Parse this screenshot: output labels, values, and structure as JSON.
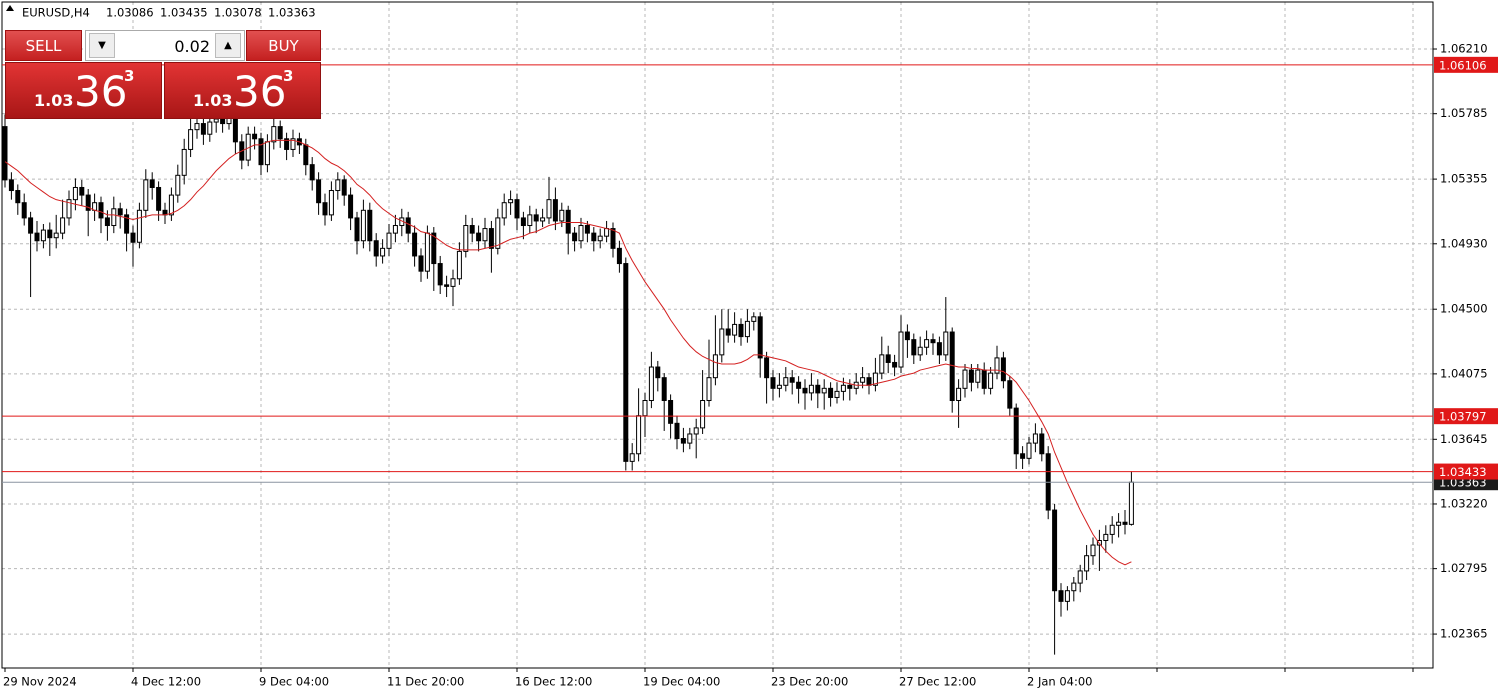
{
  "chart_data": {
    "type": "candlestick",
    "symbol": "EURUSD,H4",
    "ylim": [
      1.02142,
      1.06519
    ],
    "yticks": [
      {
        "value": 1.0621,
        "label": "1.06210"
      },
      1.05785,
      1.05355,
      {
        "value": 1.0493,
        "label": "1.04930"
      },
      {
        "value": 1.045,
        "label": "1.04500"
      },
      1.04075,
      1.03645,
      {
        "value": 1.0322,
        "label": "1.03220"
      },
      1.02795,
      1.02365
    ],
    "grid": true,
    "up_color": "#ffffff",
    "down_color": "#000000",
    "ma_color": "#d42020",
    "categories": [
      "29 Nov 2024",
      null,
      null,
      null,
      null,
      null,
      null,
      null,
      null,
      null,
      null,
      null,
      null,
      null,
      null,
      null,
      null,
      null,
      null,
      null,
      "4 Dec 12:00",
      null,
      null,
      null,
      null,
      null,
      null,
      null,
      null,
      null,
      null,
      null,
      null,
      null,
      null,
      null,
      null,
      null,
      null,
      null,
      "9 Dec 04:00",
      null,
      null,
      null,
      null,
      null,
      null,
      null,
      null,
      null,
      null,
      null,
      null,
      null,
      null,
      null,
      null,
      null,
      null,
      null,
      "11 Dec 20:00",
      null,
      null,
      null,
      null,
      null,
      null,
      null,
      null,
      null,
      null,
      null,
      null,
      null,
      null,
      null,
      null,
      null,
      null,
      null,
      "16 Dec 12:00",
      null,
      null,
      null,
      null,
      null,
      null,
      null,
      null,
      null,
      null,
      null,
      null,
      null,
      null,
      null,
      null,
      null,
      null,
      null,
      "19 Dec 04:00",
      null,
      null,
      null,
      null,
      null,
      null,
      null,
      null,
      null,
      null,
      null,
      null,
      null,
      null,
      null,
      null,
      null,
      null,
      null,
      "23 Dec 20:00",
      null,
      null,
      null,
      null,
      null,
      null,
      null,
      null,
      null,
      null,
      null,
      null,
      null,
      null,
      null,
      null,
      null,
      null,
      null,
      "27 Dec 12:00",
      null,
      null,
      null,
      null,
      null,
      null,
      null,
      null,
      null,
      null,
      null,
      null,
      null,
      null,
      null,
      null,
      null,
      null,
      null,
      "2 Jan 04:00",
      null,
      null,
      null,
      null,
      null,
      null,
      null,
      null,
      null,
      null,
      null,
      null,
      null,
      null,
      null,
      null
    ],
    "ohlc": [
      [
        1.057,
        1.0578,
        1.053,
        1.0535
      ],
      [
        1.0535,
        1.054,
        1.0522,
        1.0528
      ],
      [
        1.0528,
        1.0532,
        1.0512,
        1.052
      ],
      [
        1.052,
        1.0526,
        1.0505,
        1.051
      ],
      [
        1.051,
        1.0514,
        1.0458,
        1.05
      ],
      [
        1.05,
        1.0508,
        1.0488,
        1.0495
      ],
      [
        1.0495,
        1.0506,
        1.049,
        1.0502
      ],
      [
        1.0502,
        1.0507,
        1.0485,
        1.0497
      ],
      [
        1.0497,
        1.0512,
        1.049,
        1.05
      ],
      [
        1.05,
        1.0522,
        1.0496,
        1.051
      ],
      [
        1.051,
        1.0528,
        1.0505,
        1.0522
      ],
      [
        1.0522,
        1.0536,
        1.0515,
        1.053
      ],
      [
        1.053,
        1.0535,
        1.0518,
        1.0525
      ],
      [
        1.0525,
        1.0529,
        1.0498,
        1.0515
      ],
      [
        1.0515,
        1.0526,
        1.0508,
        1.052
      ],
      [
        1.052,
        1.0524,
        1.05,
        1.051
      ],
      [
        1.051,
        1.0515,
        1.0495,
        1.0505
      ],
      [
        1.0505,
        1.0524,
        1.05,
        1.0516
      ],
      [
        1.0516,
        1.052,
        1.0503,
        1.0512
      ],
      [
        1.0512,
        1.0516,
        1.0488,
        1.05
      ],
      [
        1.05,
        1.0505,
        1.0478,
        1.0494
      ],
      [
        1.0494,
        1.052,
        1.049,
        1.0515
      ],
      [
        1.0515,
        1.0542,
        1.051,
        1.0535
      ],
      [
        1.0535,
        1.054,
        1.0522,
        1.053
      ],
      [
        1.053,
        1.0534,
        1.0508,
        1.0515
      ],
      [
        1.0515,
        1.052,
        1.0506,
        1.0512
      ],
      [
        1.0512,
        1.053,
        1.0508,
        1.0525
      ],
      [
        1.0525,
        1.0545,
        1.052,
        1.0538
      ],
      [
        1.0538,
        1.0562,
        1.0532,
        1.0555
      ],
      [
        1.0555,
        1.0575,
        1.055,
        1.0568
      ],
      [
        1.0568,
        1.058,
        1.0562,
        1.0572
      ],
      [
        1.0572,
        1.0578,
        1.0558,
        1.0565
      ],
      [
        1.0565,
        1.058,
        1.056,
        1.0573
      ],
      [
        1.0573,
        1.0582,
        1.0566,
        1.0575
      ],
      [
        1.0575,
        1.0579,
        1.0566,
        1.0572
      ],
      [
        1.0572,
        1.0584,
        1.0568,
        1.0576
      ],
      [
        1.0576,
        1.058,
        1.0552,
        1.056
      ],
      [
        1.056,
        1.0565,
        1.0542,
        1.0548
      ],
      [
        1.0548,
        1.057,
        1.0544,
        1.0565
      ],
      [
        1.0565,
        1.057,
        1.0555,
        1.0562
      ],
      [
        1.0562,
        1.0566,
        1.0538,
        1.0545
      ],
      [
        1.0545,
        1.0565,
        1.054,
        1.056
      ],
      [
        1.056,
        1.0578,
        1.0555,
        1.057
      ],
      [
        1.057,
        1.0574,
        1.0556,
        1.0562
      ],
      [
        1.0562,
        1.0566,
        1.0548,
        1.0555
      ],
      [
        1.0555,
        1.0568,
        1.055,
        1.0562
      ],
      [
        1.0562,
        1.0566,
        1.0552,
        1.0558
      ],
      [
        1.0558,
        1.0562,
        1.0538,
        1.0545
      ],
      [
        1.0545,
        1.055,
        1.0528,
        1.0535
      ],
      [
        1.0535,
        1.054,
        1.0512,
        1.052
      ],
      [
        1.052,
        1.0526,
        1.0505,
        1.0512
      ],
      [
        1.0512,
        1.0534,
        1.0508,
        1.0528
      ],
      [
        1.0528,
        1.054,
        1.0522,
        1.0535
      ],
      [
        1.0535,
        1.0538,
        1.0518,
        1.0525
      ],
      [
        1.0525,
        1.053,
        1.0502,
        1.051
      ],
      [
        1.051,
        1.0514,
        1.0486,
        1.0495
      ],
      [
        1.0495,
        1.0522,
        1.049,
        1.0515
      ],
      [
        1.0515,
        1.052,
        1.0488,
        1.0495
      ],
      [
        1.0495,
        1.05,
        1.0478,
        1.0485
      ],
      [
        1.0485,
        1.0496,
        1.048,
        1.049
      ],
      [
        1.049,
        1.0506,
        1.0485,
        1.05
      ],
      [
        1.05,
        1.0512,
        1.0494,
        1.0505
      ],
      [
        1.0505,
        1.0516,
        1.0498,
        1.051
      ],
      [
        1.051,
        1.0514,
        1.0494,
        1.05
      ],
      [
        1.05,
        1.0505,
        1.0478,
        1.0485
      ],
      [
        1.0485,
        1.049,
        1.0468,
        1.0475
      ],
      [
        1.0475,
        1.0505,
        1.047,
        1.05
      ],
      [
        1.05,
        1.0504,
        1.0462,
        1.048
      ],
      [
        1.048,
        1.0485,
        1.046,
        1.0466
      ],
      [
        1.0466,
        1.0472,
        1.0458,
        1.0465
      ],
      [
        1.0465,
        1.0476,
        1.0452,
        1.047
      ],
      [
        1.047,
        1.0494,
        1.0466,
        1.0488
      ],
      [
        1.0488,
        1.0512,
        1.0484,
        1.0505
      ],
      [
        1.0505,
        1.051,
        1.0494,
        1.05
      ],
      [
        1.05,
        1.0505,
        1.0488,
        1.0495
      ],
      [
        1.0495,
        1.051,
        1.049,
        1.0503
      ],
      [
        1.0503,
        1.0508,
        1.0474,
        1.049
      ],
      [
        1.049,
        1.0516,
        1.0486,
        1.051
      ],
      [
        1.051,
        1.0526,
        1.0505,
        1.052
      ],
      [
        1.052,
        1.0528,
        1.0512,
        1.0522
      ],
      [
        1.0522,
        1.0526,
        1.0502,
        1.051
      ],
      [
        1.051,
        1.0514,
        1.0496,
        1.0505
      ],
      [
        1.0505,
        1.0518,
        1.05,
        1.0512
      ],
      [
        1.0512,
        1.0516,
        1.05,
        1.0508
      ],
      [
        1.0508,
        1.0516,
        1.0504,
        1.051
      ],
      [
        1.051,
        1.0537,
        1.0506,
        1.0522
      ],
      [
        1.0522,
        1.053,
        1.0502,
        1.0508
      ],
      [
        1.0508,
        1.052,
        1.0504,
        1.0515
      ],
      [
        1.0515,
        1.0518,
        1.0486,
        1.05
      ],
      [
        1.05,
        1.0504,
        1.0488,
        1.0495
      ],
      [
        1.0495,
        1.051,
        1.049,
        1.0505
      ],
      [
        1.0505,
        1.0508,
        1.0494,
        1.05
      ],
      [
        1.05,
        1.0504,
        1.0488,
        1.0495
      ],
      [
        1.0495,
        1.0503,
        1.049,
        1.0498
      ],
      [
        1.0498,
        1.0508,
        1.0494,
        1.0503
      ],
      [
        1.0503,
        1.0507,
        1.0484,
        1.049
      ],
      [
        1.049,
        1.0495,
        1.0474,
        1.048
      ],
      [
        1.048,
        1.0484,
        1.0344,
        1.035
      ],
      [
        1.035,
        1.0362,
        1.0344,
        1.0355
      ],
      [
        1.0355,
        1.0398,
        1.035,
        1.038
      ],
      [
        1.038,
        1.0395,
        1.0366,
        1.039
      ],
      [
        1.039,
        1.0422,
        1.0385,
        1.0412
      ],
      [
        1.0412,
        1.0416,
        1.0396,
        1.0405
      ],
      [
        1.0405,
        1.0408,
        1.037,
        1.039
      ],
      [
        1.039,
        1.0394,
        1.0365,
        1.0375
      ],
      [
        1.0375,
        1.038,
        1.0358,
        1.0365
      ],
      [
        1.0365,
        1.0372,
        1.0356,
        1.0362
      ],
      [
        1.0362,
        1.0372,
        1.0358,
        1.0368
      ],
      [
        1.0368,
        1.0378,
        1.0352,
        1.0372
      ],
      [
        1.0372,
        1.041,
        1.0368,
        1.039
      ],
      [
        1.039,
        1.043,
        1.0386,
        1.0405
      ],
      [
        1.0405,
        1.0446,
        1.04,
        1.042
      ],
      [
        1.042,
        1.045,
        1.0415,
        1.0437
      ],
      [
        1.0437,
        1.045,
        1.0428,
        1.0433
      ],
      [
        1.0433,
        1.0448,
        1.0428,
        1.044
      ],
      [
        1.044,
        1.0444,
        1.0426,
        1.0432
      ],
      [
        1.0432,
        1.045,
        1.0428,
        1.0442
      ],
      [
        1.0442,
        1.0448,
        1.0436,
        1.0445
      ],
      [
        1.0445,
        1.0448,
        1.0405,
        1.0418
      ],
      [
        1.0418,
        1.0422,
        1.0388,
        1.0405
      ],
      [
        1.0405,
        1.041,
        1.039,
        1.0398
      ],
      [
        1.0398,
        1.0408,
        1.0392,
        1.04
      ],
      [
        1.04,
        1.0412,
        1.0396,
        1.0405
      ],
      [
        1.0405,
        1.041,
        1.0394,
        1.0402
      ],
      [
        1.0402,
        1.0406,
        1.0388,
        1.0398
      ],
      [
        1.0398,
        1.0404,
        1.0384,
        1.0395
      ],
      [
        1.0395,
        1.0408,
        1.039,
        1.04
      ],
      [
        1.04,
        1.0404,
        1.0385,
        1.0395
      ],
      [
        1.0395,
        1.0404,
        1.0384,
        1.0398
      ],
      [
        1.0398,
        1.0402,
        1.0386,
        1.0392
      ],
      [
        1.0392,
        1.0402,
        1.0388,
        1.0396
      ],
      [
        1.0396,
        1.0405,
        1.039,
        1.04
      ],
      [
        1.04,
        1.0404,
        1.039,
        1.0398
      ],
      [
        1.0398,
        1.0408,
        1.0394,
        1.0402
      ],
      [
        1.0402,
        1.0412,
        1.0398,
        1.0405
      ],
      [
        1.0405,
        1.0408,
        1.0394,
        1.04
      ],
      [
        1.04,
        1.0418,
        1.0396,
        1.0408
      ],
      [
        1.0408,
        1.0432,
        1.0404,
        1.042
      ],
      [
        1.042,
        1.0426,
        1.0408,
        1.0415
      ],
      [
        1.0415,
        1.042,
        1.0406,
        1.0412
      ],
      [
        1.0412,
        1.0446,
        1.0408,
        1.0435
      ],
      [
        1.0435,
        1.044,
        1.0418,
        1.043
      ],
      [
        1.043,
        1.0434,
        1.0414,
        1.042
      ],
      [
        1.042,
        1.0432,
        1.0416,
        1.0425
      ],
      [
        1.0425,
        1.0436,
        1.042,
        1.043
      ],
      [
        1.043,
        1.0434,
        1.042,
        1.0428
      ],
      [
        1.0428,
        1.0432,
        1.0414,
        1.042
      ],
      [
        1.042,
        1.0458,
        1.0416,
        1.0435
      ],
      [
        1.0435,
        1.0438,
        1.0382,
        1.039
      ],
      [
        1.039,
        1.0404,
        1.0372,
        1.0398
      ],
      [
        1.0398,
        1.0414,
        1.0392,
        1.041
      ],
      [
        1.041,
        1.0414,
        1.0396,
        1.0402
      ],
      [
        1.0402,
        1.0414,
        1.0398,
        1.041
      ],
      [
        1.041,
        1.0415,
        1.0394,
        1.0398
      ],
      [
        1.0398,
        1.0412,
        1.0394,
        1.0408
      ],
      [
        1.0408,
        1.0426,
        1.0404,
        1.0418
      ],
      [
        1.0418,
        1.0422,
        1.0398,
        1.0403
      ],
      [
        1.0403,
        1.0406,
        1.038,
        1.0385
      ],
      [
        1.0385,
        1.0388,
        1.0345,
        1.0355
      ],
      [
        1.0355,
        1.036,
        1.0345,
        1.0352
      ],
      [
        1.0352,
        1.0366,
        1.0348,
        1.0362
      ],
      [
        1.0362,
        1.0375,
        1.0356,
        1.0368
      ],
      [
        1.0368,
        1.0372,
        1.035,
        1.0355
      ],
      [
        1.0355,
        1.036,
        1.0312,
        1.0318
      ],
      [
        1.0318,
        1.0322,
        1.0223,
        1.0265
      ],
      [
        1.0265,
        1.027,
        1.0248,
        1.0258
      ],
      [
        1.0258,
        1.0268,
        1.0252,
        1.0265
      ],
      [
        1.0265,
        1.0274,
        1.0258,
        1.027
      ],
      [
        1.027,
        1.0282,
        1.0264,
        1.0278
      ],
      [
        1.0278,
        1.0295,
        1.0272,
        1.0288
      ],
      [
        1.0288,
        1.03,
        1.0282,
        1.0295
      ],
      [
        1.0295,
        1.0305,
        1.0278,
        1.0298
      ],
      [
        1.0298,
        1.0308,
        1.029,
        1.0302
      ],
      [
        1.0302,
        1.0314,
        1.0296,
        1.0308
      ],
      [
        1.0308,
        1.0316,
        1.03,
        1.031
      ],
      [
        1.031,
        1.0318,
        1.0302,
        1.03086
      ],
      [
        1.03086,
        1.03435,
        1.03078,
        1.03363
      ]
    ],
    "ma": [
      1.0547,
      1.0544,
      1.0541,
      1.0537,
      1.0533,
      1.053,
      1.0527,
      1.0524,
      1.0522,
      1.0521,
      1.052,
      1.0519,
      1.0518,
      1.0517,
      1.0515,
      1.0514,
      1.0512,
      1.0512,
      1.0511,
      1.051,
      1.0509,
      1.051,
      1.0511,
      1.0512,
      1.0512,
      1.0512,
      1.0513,
      1.0515,
      1.0518,
      1.0522,
      1.0527,
      1.0531,
      1.0536,
      1.0541,
      1.0545,
      1.0549,
      1.0552,
      1.0554,
      1.0556,
      1.0558,
      1.0558,
      1.056,
      1.0561,
      1.0561,
      1.0561,
      1.0561,
      1.056,
      1.0558,
      1.0556,
      1.0553,
      1.0549,
      1.0546,
      1.0544,
      1.0541,
      1.0537,
      1.0532,
      1.0529,
      1.0525,
      1.052,
      1.0516,
      1.0513,
      1.051,
      1.0508,
      1.0506,
      1.0504,
      1.0501,
      1.05,
      1.0498,
      1.0495,
      1.0492,
      1.049,
      1.0489,
      1.0489,
      1.0489,
      1.0489,
      1.049,
      1.0491,
      1.0492,
      1.0494,
      1.0496,
      1.0497,
      1.0498,
      1.05,
      1.0501,
      1.0503,
      1.0505,
      1.0506,
      1.0507,
      1.0507,
      1.0507,
      1.0507,
      1.0506,
      1.0505,
      1.0504,
      1.0503,
      1.0502,
      1.05,
      1.049,
      1.0482,
      1.0475,
      1.0468,
      1.0462,
      1.0456,
      1.045,
      1.0443,
      1.0437,
      1.0431,
      1.0426,
      1.0422,
      1.0419,
      1.0417,
      1.0415,
      1.0414,
      1.0414,
      1.0414,
      1.0415,
      1.0417,
      1.042,
      1.042,
      1.0419,
      1.0418,
      1.0417,
      1.0416,
      1.0414,
      1.0412,
      1.0411,
      1.041,
      1.0409,
      1.0407,
      1.0405,
      1.0403,
      1.0402,
      1.0401,
      1.04,
      1.04,
      1.04,
      1.0401,
      1.0402,
      1.0403,
      1.0404,
      1.0406,
      1.0407,
      1.0408,
      1.041,
      1.0411,
      1.0412,
      1.0413,
      1.0414,
      1.0413,
      1.0412,
      1.0412,
      1.0411,
      1.0411,
      1.041,
      1.041,
      1.041,
      1.0409,
      1.0406,
      1.0402,
      1.0396,
      1.039,
      1.0383,
      1.0376,
      1.0368,
      1.0356,
      1.0346,
      1.0336,
      1.0327,
      1.0318,
      1.031,
      1.0302,
      1.0296,
      1.0291,
      1.0287,
      1.0284,
      1.0282,
      1.0284
    ],
    "hlines": [
      {
        "value": 1.03363,
        "color": "#8a94a0"
      },
      {
        "value": 1.06106,
        "color": "#e01818"
      },
      {
        "value": 1.03797,
        "color": "#e01818"
      },
      {
        "value": 1.03433,
        "color": "#e01818"
      }
    ]
  },
  "trade_panel": {
    "sell": "SELL",
    "buy": "BUY",
    "lot": "0.02",
    "bid": {
      "big": "1.03",
      "pips": "36",
      "point": "3"
    },
    "ask": {
      "big": "1.03",
      "pips": "36",
      "point": "3"
    }
  }
}
